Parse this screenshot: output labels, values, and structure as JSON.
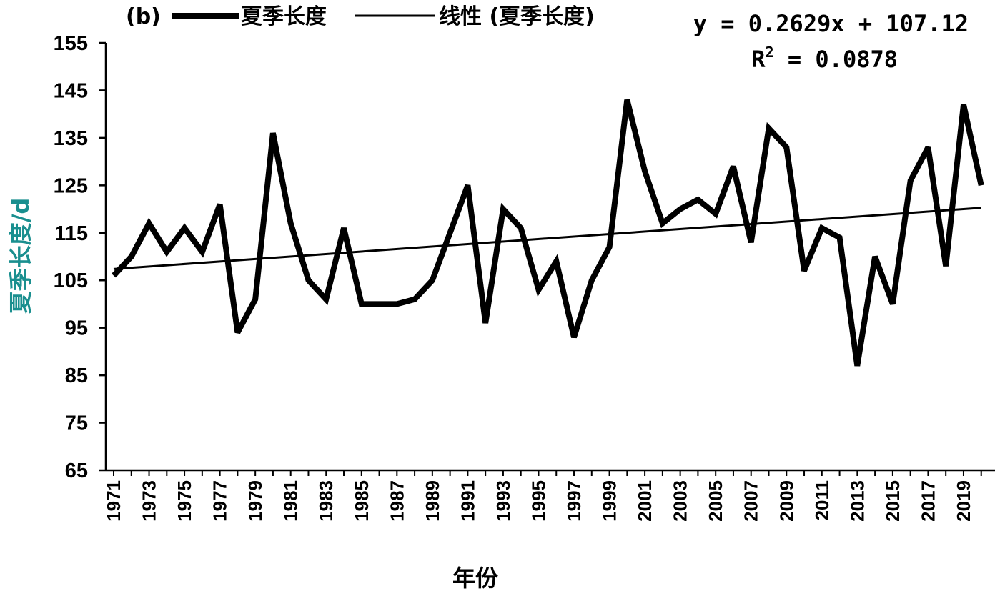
{
  "chart_data": {
    "type": "line",
    "panel_label": "(b)",
    "xlabel": "年份",
    "ylabel": "夏季长度/d",
    "ylabel_color": "#1a8f8f",
    "ylim": [
      65,
      155
    ],
    "yticks": [
      65,
      75,
      85,
      95,
      105,
      115,
      125,
      135,
      145,
      155
    ],
    "xticks": [
      "1971",
      "1973",
      "1975",
      "1977",
      "1979",
      "1981",
      "1983",
      "1985",
      "1987",
      "1989",
      "1991",
      "1993",
      "1995",
      "1997",
      "1999",
      "2001",
      "2003",
      "2005",
      "2007",
      "2009",
      "2011",
      "2013",
      "2015",
      "2017",
      "2019"
    ],
    "x": [
      1971,
      1972,
      1973,
      1974,
      1975,
      1976,
      1977,
      1978,
      1979,
      1980,
      1981,
      1982,
      1983,
      1984,
      1985,
      1986,
      1987,
      1988,
      1989,
      1990,
      1991,
      1992,
      1993,
      1994,
      1995,
      1996,
      1997,
      1998,
      1999,
      2000,
      2001,
      2002,
      2003,
      2004,
      2005,
      2006,
      2007,
      2008,
      2009,
      2010,
      2011,
      2012,
      2013,
      2014,
      2015,
      2016,
      2017,
      2018,
      2019,
      2020
    ],
    "series": [
      {
        "name": "夏季长度",
        "values": [
          106,
          110,
          117,
          111,
          116,
          111,
          121,
          94,
          101,
          136,
          117,
          105,
          101,
          116,
          100,
          100,
          100,
          101,
          105,
          115,
          125,
          96,
          120,
          116,
          103,
          109,
          93,
          105,
          112,
          143,
          128,
          117,
          120,
          122,
          119,
          129,
          113,
          137,
          133,
          107,
          116,
          114,
          87,
          110,
          100,
          126,
          133,
          108,
          142,
          125
        ],
        "color": "#000000"
      }
    ],
    "trendline": {
      "name": "线性 (夏季长度)",
      "slope": 0.2629,
      "intercept": 107.12,
      "equation": "y = 0.2629x + 107.12",
      "r2_label": "R",
      "r2_sup": "2",
      "r2_value": " = 0.0878",
      "color": "#000000"
    },
    "legend_position": "top",
    "grid": false
  }
}
